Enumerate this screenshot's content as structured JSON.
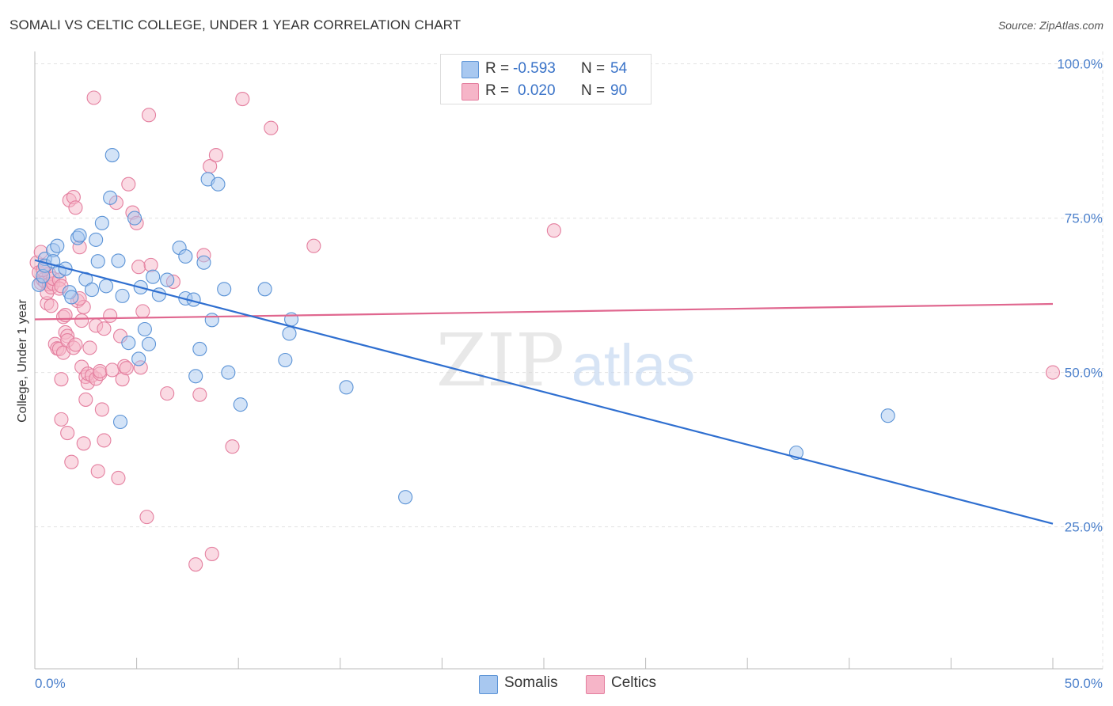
{
  "title": "SOMALI VS CELTIC COLLEGE, UNDER 1 YEAR CORRELATION CHART",
  "source": "Source: ZipAtlas.com",
  "watermark": {
    "zip": "ZIP",
    "atlas": "atlas"
  },
  "legend": {
    "r_label": "R =",
    "n_label": "N =",
    "somali": {
      "r": "-0.593",
      "n": "54",
      "color": "#a8c8f0"
    },
    "celtic": {
      "r": "0.020",
      "n": "90",
      "color": "#f6b5c8"
    }
  },
  "bottom_legend": {
    "somalis": "Somalis",
    "celtics": "Celtics"
  },
  "colors": {
    "somali_fill": "#a8c8f0",
    "somali_stroke": "#5b93d6",
    "somali_line": "#2f6fd0",
    "celtic_fill": "#f6b5c8",
    "celtic_stroke": "#e47f9f",
    "celtic_line": "#e0678f",
    "grid": "#e3e3e3",
    "tick_text": "#4a7fcb"
  },
  "chart_data": {
    "type": "scatter",
    "title": "SOMALI VS CELTIC COLLEGE, UNDER 1 YEAR CORRELATION CHART",
    "xlabel": "",
    "ylabel": "College, Under 1 year",
    "xlim": [
      0,
      50
    ],
    "ylim": [
      2,
      102
    ],
    "x_tick_labels": [
      {
        "value": 0,
        "label": "0.0%"
      },
      {
        "value": 50,
        "label": "50.0%"
      }
    ],
    "y_tick_labels": [
      {
        "value": 100,
        "label": "100.0%"
      },
      {
        "value": 75,
        "label": "75.0%"
      },
      {
        "value": 50,
        "label": "50.0%"
      },
      {
        "value": 25,
        "label": "25.0%"
      }
    ],
    "grid": true,
    "legend_position": "top-center",
    "series": [
      {
        "name": "Somalis",
        "r": -0.593,
        "n": 54,
        "trend": {
          "x": [
            0,
            50
          ],
          "y": [
            68.2,
            25.5
          ]
        },
        "points": [
          [
            0.2,
            64.2
          ],
          [
            0.4,
            65.6
          ],
          [
            0.5,
            68.4
          ],
          [
            0.5,
            67.3
          ],
          [
            0.9,
            69.8
          ],
          [
            0.9,
            68.0
          ],
          [
            1.1,
            70.5
          ],
          [
            1.2,
            66.4
          ],
          [
            1.5,
            66.8
          ],
          [
            1.7,
            63.0
          ],
          [
            1.8,
            62.2
          ],
          [
            2.1,
            71.8
          ],
          [
            2.2,
            72.2
          ],
          [
            2.5,
            65.1
          ],
          [
            2.8,
            63.4
          ],
          [
            3.0,
            71.5
          ],
          [
            3.1,
            68.0
          ],
          [
            3.3,
            74.2
          ],
          [
            3.5,
            64.0
          ],
          [
            3.7,
            78.3
          ],
          [
            3.8,
            85.2
          ],
          [
            4.1,
            68.1
          ],
          [
            4.2,
            42.0
          ],
          [
            4.3,
            62.4
          ],
          [
            4.6,
            54.8
          ],
          [
            4.9,
            75.0
          ],
          [
            5.1,
            52.2
          ],
          [
            5.2,
            63.8
          ],
          [
            5.4,
            57.0
          ],
          [
            5.6,
            54.6
          ],
          [
            5.8,
            65.5
          ],
          [
            6.1,
            62.6
          ],
          [
            6.5,
            65.0
          ],
          [
            7.1,
            70.2
          ],
          [
            7.4,
            62.0
          ],
          [
            7.4,
            68.8
          ],
          [
            7.8,
            61.8
          ],
          [
            7.9,
            49.4
          ],
          [
            8.1,
            53.8
          ],
          [
            8.3,
            67.8
          ],
          [
            8.5,
            81.3
          ],
          [
            8.7,
            58.5
          ],
          [
            9.0,
            80.5
          ],
          [
            9.3,
            63.5
          ],
          [
            9.5,
            50.0
          ],
          [
            10.1,
            44.8
          ],
          [
            11.3,
            63.5
          ],
          [
            12.3,
            52.0
          ],
          [
            12.5,
            56.3
          ],
          [
            12.6,
            58.6
          ],
          [
            15.3,
            47.6
          ],
          [
            18.2,
            29.8
          ],
          [
            37.4,
            37.0
          ],
          [
            41.9,
            43.0
          ]
        ]
      },
      {
        "name": "Celtics",
        "r": 0.02,
        "n": 90,
        "trend": {
          "x": [
            0,
            50
          ],
          "y": [
            58.6,
            61.1
          ]
        },
        "points": [
          [
            0.1,
            67.8
          ],
          [
            0.2,
            66.2
          ],
          [
            0.3,
            64.5
          ],
          [
            0.3,
            69.5
          ],
          [
            0.4,
            65.0
          ],
          [
            0.5,
            67.1
          ],
          [
            0.5,
            64.7
          ],
          [
            0.6,
            61.2
          ],
          [
            0.6,
            62.9
          ],
          [
            0.7,
            66.0
          ],
          [
            0.7,
            64.3
          ],
          [
            0.8,
            63.8
          ],
          [
            0.8,
            60.8
          ],
          [
            0.9,
            64.4
          ],
          [
            0.9,
            65.2
          ],
          [
            1.0,
            54.6
          ],
          [
            1.1,
            53.9
          ],
          [
            1.2,
            65.0
          ],
          [
            1.2,
            53.8
          ],
          [
            1.2,
            63.6
          ],
          [
            1.3,
            42.4
          ],
          [
            1.3,
            48.9
          ],
          [
            1.4,
            53.2
          ],
          [
            1.4,
            59.0
          ],
          [
            1.5,
            56.5
          ],
          [
            1.5,
            59.3
          ],
          [
            1.6,
            40.2
          ],
          [
            1.6,
            55.9
          ],
          [
            1.6,
            55.2
          ],
          [
            1.7,
            77.9
          ],
          [
            1.8,
            35.5
          ],
          [
            1.9,
            78.4
          ],
          [
            1.9,
            54.0
          ],
          [
            2.0,
            76.7
          ],
          [
            2.0,
            54.5
          ],
          [
            2.1,
            61.6
          ],
          [
            2.2,
            70.3
          ],
          [
            2.3,
            50.9
          ],
          [
            2.3,
            58.4
          ],
          [
            2.4,
            38.5
          ],
          [
            2.4,
            60.6
          ],
          [
            2.5,
            49.3
          ],
          [
            2.5,
            45.6
          ],
          [
            2.6,
            48.3
          ],
          [
            2.6,
            49.8
          ],
          [
            2.7,
            54.0
          ],
          [
            2.8,
            49.5
          ],
          [
            2.9,
            94.5
          ],
          [
            3.0,
            57.6
          ],
          [
            3.0,
            49.0
          ],
          [
            3.1,
            34.0
          ],
          [
            3.2,
            49.8
          ],
          [
            3.2,
            50.2
          ],
          [
            3.3,
            44.0
          ],
          [
            3.4,
            57.1
          ],
          [
            3.4,
            39.0
          ],
          [
            3.7,
            59.2
          ],
          [
            3.8,
            50.4
          ],
          [
            4.0,
            77.5
          ],
          [
            4.1,
            32.9
          ],
          [
            4.2,
            55.9
          ],
          [
            4.3,
            48.9
          ],
          [
            4.4,
            51.0
          ],
          [
            4.5,
            50.7
          ],
          [
            4.6,
            80.5
          ],
          [
            4.8,
            75.9
          ],
          [
            5.0,
            74.2
          ],
          [
            5.1,
            67.1
          ],
          [
            5.2,
            50.8
          ],
          [
            5.3,
            59.9
          ],
          [
            5.5,
            26.6
          ],
          [
            5.6,
            91.7
          ],
          [
            5.7,
            67.4
          ],
          [
            6.5,
            46.6
          ],
          [
            6.8,
            64.7
          ],
          [
            7.9,
            18.9
          ],
          [
            8.1,
            46.4
          ],
          [
            8.3,
            69.0
          ],
          [
            8.6,
            83.4
          ],
          [
            8.7,
            20.6
          ],
          [
            8.9,
            85.2
          ],
          [
            9.7,
            38.0
          ],
          [
            10.2,
            94.3
          ],
          [
            11.6,
            89.6
          ],
          [
            13.7,
            70.5
          ],
          [
            25.5,
            73.0
          ],
          [
            50.0,
            50.0
          ],
          [
            1.3,
            64.0
          ],
          [
            0.4,
            66.6
          ],
          [
            2.2,
            62.0
          ]
        ]
      }
    ]
  }
}
